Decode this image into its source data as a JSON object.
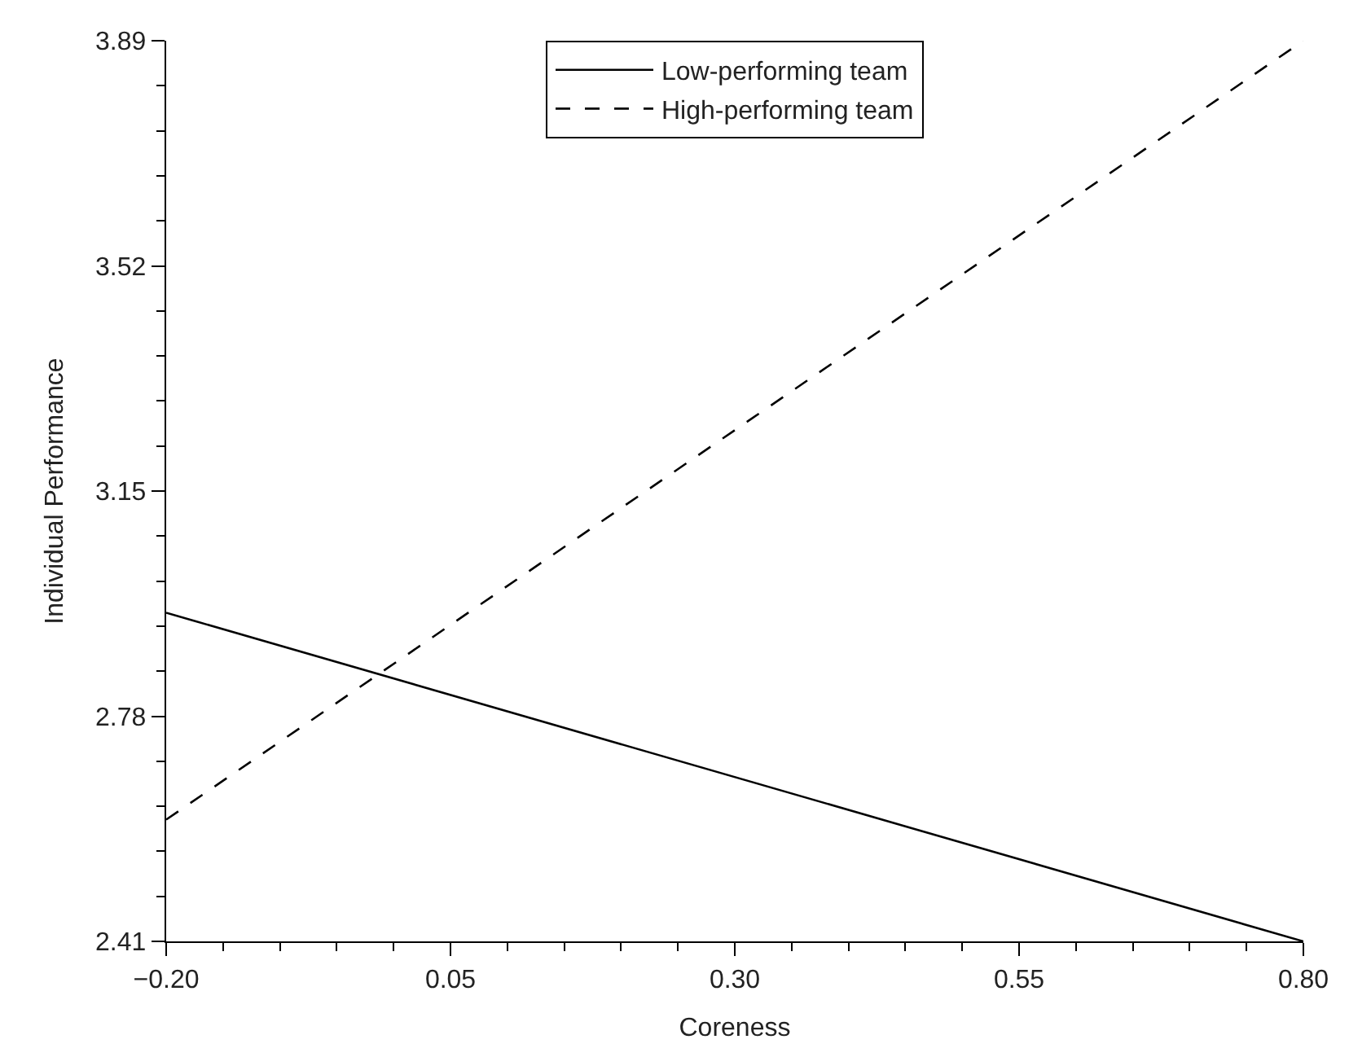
{
  "chart_data": {
    "type": "line",
    "xlabel": "Coreness",
    "ylabel": "Individual Performance",
    "x": [
      -0.2,
      0.8
    ],
    "series": [
      {
        "name": "Low-performing team",
        "color": "#000000",
        "line_style": "solid",
        "values": [
          2.95,
          2.41
        ]
      },
      {
        "name": "High-performing team",
        "color": "#000000",
        "line_style": "dashed",
        "values": [
          2.61,
          3.89
        ]
      }
    ],
    "xlim": [
      -0.2,
      0.8
    ],
    "xticks": [
      {
        "value": -0.2,
        "label": "−0.20"
      },
      {
        "value": 0.05,
        "label": "0.05"
      },
      {
        "value": 0.3,
        "label": "0.30"
      },
      {
        "value": 0.55,
        "label": "0.55"
      },
      {
        "value": 0.8,
        "label": "0.80"
      }
    ],
    "ylim": [
      2.41,
      3.89
    ],
    "yticks": [
      {
        "value": 2.41,
        "label": "2.41"
      },
      {
        "value": 2.78,
        "label": "2.78"
      },
      {
        "value": 3.15,
        "label": "3.15"
      },
      {
        "value": 3.52,
        "label": "3.52"
      },
      {
        "value": 3.89,
        "label": "3.89"
      }
    ],
    "legend": "top",
    "marker": "none"
  }
}
